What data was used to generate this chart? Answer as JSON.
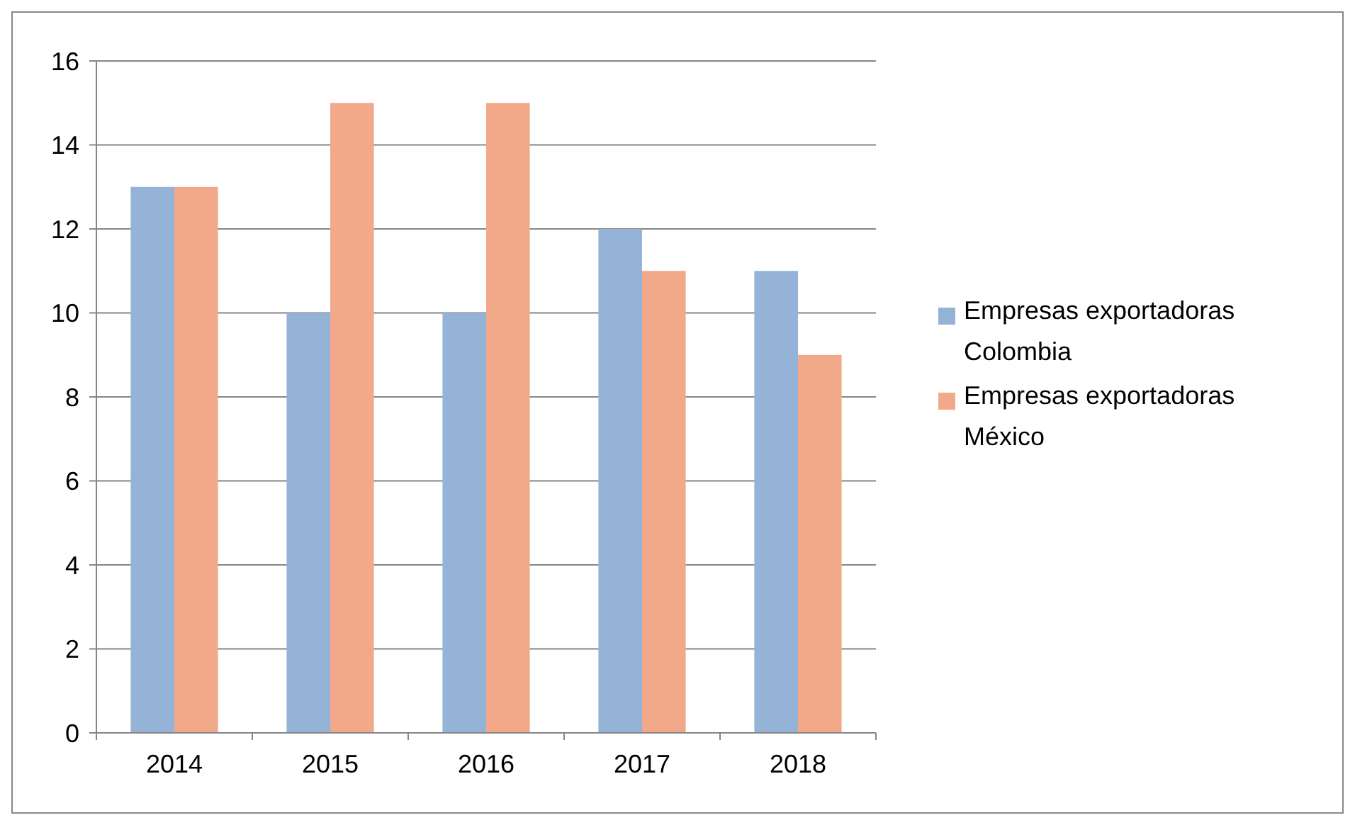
{
  "chart_data": {
    "type": "bar",
    "categories": [
      "2014",
      "2015",
      "2016",
      "2017",
      "2018"
    ],
    "series": [
      {
        "name": "Empresas exportadoras Colombia",
        "color": "#95b3d7",
        "values": [
          13,
          10,
          10,
          12,
          11
        ]
      },
      {
        "name": "Empresas exportadoras México",
        "color": "#f2a98a",
        "values": [
          13,
          15,
          15,
          11,
          9
        ]
      }
    ],
    "ylim": [
      0,
      16
    ],
    "yticks": [
      0,
      2,
      4,
      6,
      8,
      10,
      12,
      14,
      16
    ],
    "grid": "y",
    "legend": "right"
  }
}
